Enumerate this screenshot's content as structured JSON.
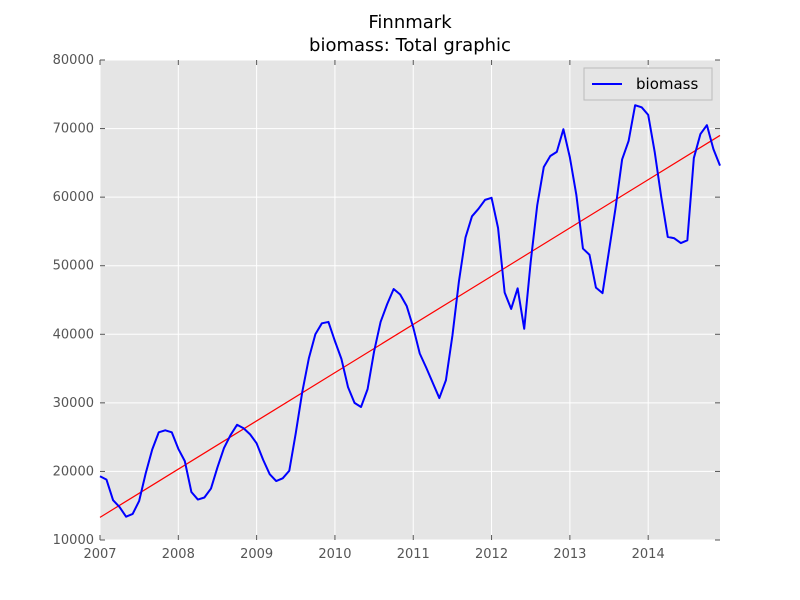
{
  "chart_data": {
    "type": "line",
    "title": "Finnmark",
    "subtitle": "biomass: Total graphic",
    "xlabel": "",
    "ylabel": "",
    "xlim": [
      2007.0,
      2014.917
    ],
    "ylim": [
      10000,
      80000
    ],
    "x_ticks": [
      2007,
      2008,
      2009,
      2010,
      2011,
      2012,
      2013,
      2014
    ],
    "x_tick_labels": [
      "2007",
      "2008",
      "2009",
      "2010",
      "2011",
      "2012",
      "2013",
      "2014"
    ],
    "y_ticks": [
      10000,
      20000,
      30000,
      40000,
      50000,
      60000,
      70000,
      80000
    ],
    "y_tick_labels": [
      "10000",
      "20000",
      "30000",
      "40000",
      "50000",
      "60000",
      "70000",
      "80000"
    ],
    "grid": true,
    "legend_position": "top-right",
    "background_color": "#e5e5e5",
    "series": [
      {
        "name": "biomass",
        "color": "#0000ff",
        "x": [
          2007.0,
          2007.083,
          2007.167,
          2007.25,
          2007.333,
          2007.417,
          2007.5,
          2007.583,
          2007.667,
          2007.75,
          2007.833,
          2007.917,
          2008.0,
          2008.083,
          2008.167,
          2008.25,
          2008.333,
          2008.417,
          2008.5,
          2008.583,
          2008.667,
          2008.75,
          2008.833,
          2008.917,
          2009.0,
          2009.083,
          2009.167,
          2009.25,
          2009.333,
          2009.417,
          2009.5,
          2009.583,
          2009.667,
          2009.75,
          2009.833,
          2009.917,
          2010.0,
          2010.083,
          2010.167,
          2010.25,
          2010.333,
          2010.417,
          2010.5,
          2010.583,
          2010.667,
          2010.75,
          2010.833,
          2010.917,
          2011.0,
          2011.083,
          2011.167,
          2011.25,
          2011.333,
          2011.417,
          2011.5,
          2011.583,
          2011.667,
          2011.75,
          2011.833,
          2011.917,
          2012.0,
          2012.083,
          2012.167,
          2012.25,
          2012.333,
          2012.417,
          2012.5,
          2012.583,
          2012.667,
          2012.75,
          2012.833,
          2012.917,
          2013.0,
          2013.083,
          2013.167,
          2013.25,
          2013.333,
          2013.417,
          2013.5,
          2013.583,
          2013.667,
          2013.75,
          2013.833,
          2013.917,
          2014.0,
          2014.083,
          2014.167,
          2014.25,
          2014.333,
          2014.417,
          2014.5,
          2014.583,
          2014.667,
          2014.75,
          2014.833,
          2014.917
        ],
        "y": [
          19300,
          18800,
          15800,
          14800,
          13400,
          13800,
          15700,
          19700,
          23200,
          25700,
          26000,
          25700,
          23300,
          21500,
          17000,
          15900,
          16200,
          17500,
          20600,
          23400,
          25300,
          26800,
          26300,
          25400,
          24100,
          21700,
          19600,
          18600,
          19000,
          20100,
          25600,
          31600,
          36500,
          40000,
          41600,
          41800,
          39000,
          36400,
          32300,
          30000,
          29400,
          32000,
          37500,
          41800,
          44400,
          46600,
          45800,
          44100,
          41000,
          37200,
          35100,
          32900,
          30700,
          33300,
          39800,
          47700,
          54100,
          57200,
          58300,
          59600,
          59900,
          55500,
          46100,
          43700,
          46700,
          40800,
          50600,
          58800,
          64400,
          66000,
          66600,
          69900,
          65800,
          60300,
          52500,
          51600,
          46800,
          46000,
          52200,
          58400,
          65500,
          68200,
          73400,
          73100,
          72000,
          66600,
          60000,
          54200,
          54000,
          53300,
          53700,
          65700,
          69200,
          70500,
          67000,
          64600
        ]
      }
    ],
    "trend_line": {
      "color": "#ff0000",
      "x": [
        2007.0,
        2014.917
      ],
      "y": [
        13300,
        69000
      ]
    }
  }
}
